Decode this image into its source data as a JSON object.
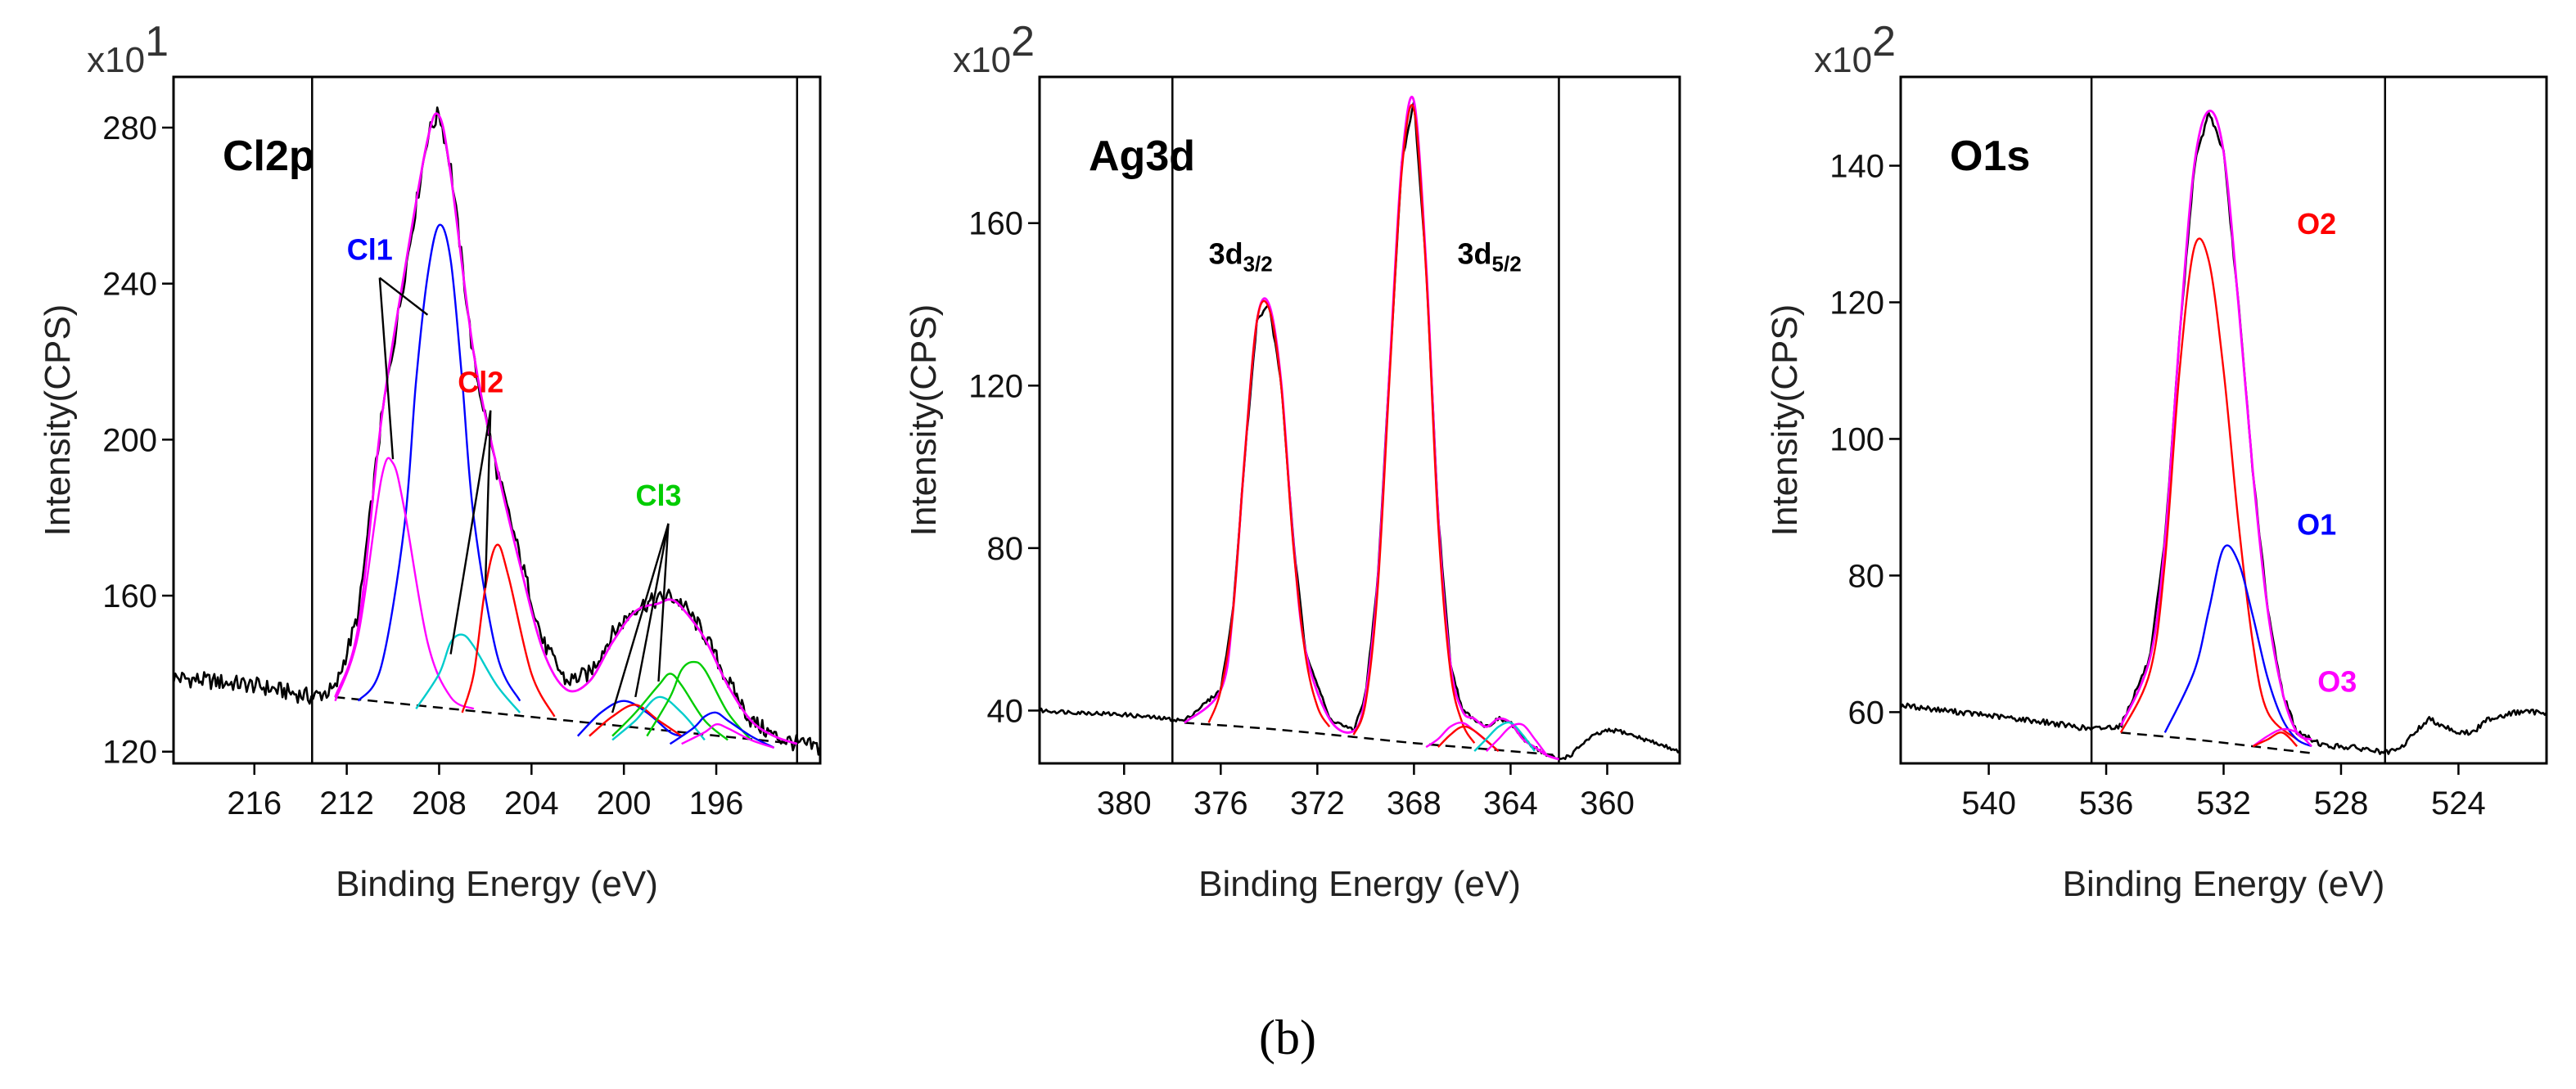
{
  "figure_caption": "(b)",
  "chart_data": [
    {
      "type": "line",
      "title": "Cl2p",
      "xlabel": "Binding Energy (eV)",
      "ylabel": "Intensity(CPS)",
      "y_multiplier": {
        "base": "x10",
        "exp": "1"
      },
      "xlim": [
        219.5,
        191.5
      ],
      "ylim": [
        117,
        293
      ],
      "xticks": [
        216,
        212,
        208,
        204,
        200,
        196
      ],
      "yticks": [
        120,
        160,
        200,
        240,
        280
      ],
      "vlines": [
        213.5,
        192.5
      ],
      "background": {
        "name": "background",
        "x": [
          212.5,
          192.5
        ],
        "y": [
          134,
          122
        ]
      },
      "raw_noise_amp": 2.2,
      "series": [
        {
          "name": "raw",
          "color": "#000000",
          "x": [
            219.5,
            216,
            213.5,
            212.5,
            211.5,
            210.5,
            209.5,
            208.5,
            208,
            207.5,
            206.5,
            205.5,
            204.5,
            203.5,
            202.5,
            201.5,
            200.5,
            199.5,
            198.5,
            198,
            197.5,
            196.5,
            195.5,
            194.5,
            193.5,
            192.5,
            191.5
          ],
          "y": [
            139,
            137,
            134,
            136,
            155,
            205,
            242,
            278,
            284,
            270,
            220,
            192,
            170,
            148,
            138,
            140,
            150,
            157,
            159,
            160,
            158,
            150,
            138,
            128,
            124,
            122,
            121
          ]
        },
        {
          "name": "envelope",
          "color": "#ff00ff",
          "x": [
            212.5,
            211.5,
            210.5,
            209.5,
            208.5,
            208,
            207.5,
            206.5,
            205.5,
            204.5,
            203.5,
            202.5,
            201.5,
            200.5,
            199.5,
            198.5,
            198,
            197.5,
            196.5,
            195.5,
            194.5,
            193.5,
            192.5
          ],
          "y": [
            134,
            152,
            205,
            243,
            277,
            283,
            268,
            222,
            193,
            168,
            146,
            136,
            138,
            148,
            156,
            158,
            159,
            157,
            149,
            137,
            128,
            124,
            122
          ]
        },
        {
          "name": "Cl1",
          "color": "#0000ff",
          "x": [
            211.5,
            210.5,
            209.5,
            209,
            208.5,
            208,
            207.5,
            207,
            206.5,
            205.5,
            204.5
          ],
          "y": [
            133,
            142,
            178,
            215,
            242,
            255,
            246,
            215,
            180,
            145,
            133
          ]
        },
        {
          "name": "Cl1",
          "color": "#ff00ff",
          "x": [
            212.5,
            211.5,
            210.5,
            210,
            209.5,
            208.5,
            207.5,
            206.5
          ],
          "y": [
            133,
            150,
            190,
            194,
            182,
            148,
            134,
            131
          ]
        },
        {
          "name": "Cl2",
          "color": "#00cccc",
          "x": [
            209,
            208,
            207.5,
            207,
            206.5,
            205.5,
            204.5
          ],
          "y": [
            131,
            140,
            148,
            150,
            147,
            137,
            130
          ]
        },
        {
          "name": "Cl2",
          "color": "#ff0000",
          "x": [
            207,
            206.5,
            206,
            205.5,
            205,
            204,
            203
          ],
          "y": [
            130,
            140,
            162,
            173,
            165,
            140,
            129
          ]
        },
        {
          "name": "Cl3",
          "color": "#0000ff",
          "x": [
            202,
            201,
            200,
            199,
            198,
            197.5
          ],
          "y": [
            124,
            130,
            133,
            130,
            125,
            124
          ]
        },
        {
          "name": "Cl3",
          "color": "#ff0000",
          "x": [
            201.5,
            200.5,
            199.5,
            198.5,
            197.5
          ],
          "y": [
            124,
            129,
            132,
            128,
            124
          ]
        },
        {
          "name": "Cl3",
          "color": "#00cc00",
          "x": [
            200.5,
            199.5,
            198.5,
            198,
            197.5,
            196.5,
            195.5
          ],
          "y": [
            124,
            130,
            137,
            140,
            137,
            128,
            123
          ]
        },
        {
          "name": "Cl3",
          "color": "#00cccc",
          "x": [
            200.5,
            199.5,
            198.5,
            197.5,
            196.5
          ],
          "y": [
            123,
            128,
            134,
            130,
            123
          ]
        },
        {
          "name": "Cl3",
          "color": "#00cc00",
          "x": [
            199,
            198,
            197.5,
            197,
            196.5,
            195.5,
            194.5
          ],
          "y": [
            124,
            134,
            141,
            143,
            141,
            130,
            123
          ]
        },
        {
          "name": "Cl3",
          "color": "#0000ff",
          "x": [
            198,
            197,
            196.5,
            196,
            195.5,
            194.5,
            193.5
          ],
          "y": [
            122,
            126,
            129,
            130,
            128,
            124,
            121
          ]
        },
        {
          "name": "Cl3",
          "color": "#ff00ff",
          "x": [
            197.5,
            196.5,
            196,
            195.5,
            194.5,
            193.5
          ],
          "y": [
            122,
            125,
            127,
            126,
            123,
            121
          ]
        }
      ],
      "annotations": [
        {
          "text": "Cl1",
          "color": "#0000ff",
          "x": 211,
          "y": 244,
          "pointers": [
            [
              210,
              195
            ],
            [
              208.5,
              232
            ]
          ]
        },
        {
          "text": "Cl2",
          "color": "#ff0000",
          "x": 206.2,
          "y": 210,
          "pointers": [
            [
              207.5,
              145
            ],
            [
              206,
              162
            ]
          ]
        },
        {
          "text": "Cl3",
          "color": "#00cc00",
          "x": 198.5,
          "y": 181,
          "pointers": [
            [
              200.5,
              130
            ],
            [
              199.5,
              134
            ],
            [
              198.5,
              138
            ]
          ]
        }
      ]
    },
    {
      "type": "line",
      "title": "Ag3d",
      "xlabel": "Binding Energy (eV)",
      "ylabel": "Intensity(CPS)",
      "y_multiplier": {
        "base": "x10",
        "exp": "2"
      },
      "xlim": [
        383.5,
        357
      ],
      "ylim": [
        27,
        196
      ],
      "xticks": [
        380,
        376,
        372,
        368,
        364,
        360
      ],
      "yticks": [
        40,
        80,
        120,
        160
      ],
      "vlines": [
        378,
        362
      ],
      "background": {
        "name": "background",
        "x": [
          377.5,
          374,
          370.5,
          368,
          365,
          362
        ],
        "y": [
          37,
          35.5,
          33.5,
          32,
          30.5,
          29
        ]
      },
      "raw_noise_amp": 0.5,
      "series": [
        {
          "name": "raw",
          "color": "#000000",
          "x": [
            383.5,
            380,
            377.5,
            376,
            375.5,
            375,
            374.5,
            374,
            373.5,
            373,
            372.5,
            371.5,
            370.5,
            370,
            369.5,
            369,
            368.5,
            368,
            367.5,
            367,
            366.5,
            366,
            365.5,
            365,
            364.5,
            364,
            363.5,
            363,
            362.5,
            362,
            361.5,
            361,
            360.5,
            360,
            359.5,
            359,
            358.5,
            358,
            357
          ],
          "y": [
            40,
            39,
            37.5,
            45,
            64,
            103,
            136,
            140,
            121,
            82,
            55,
            38,
            35,
            44,
            72,
            125,
            175,
            190,
            150,
            88,
            52,
            40,
            38,
            36,
            38,
            37,
            33,
            31,
            29,
            28,
            29,
            32,
            34,
            35,
            35,
            34,
            33,
            32,
            30
          ]
        },
        {
          "name": "envelope",
          "color": "#ff00ff",
          "x": [
            377.5,
            376,
            375.5,
            375,
            374.5,
            374,
            373.5,
            373,
            372.5,
            371.5,
            370.5,
            370,
            369.5,
            369,
            368.5,
            368,
            367.5,
            367,
            366.5,
            366,
            365.5,
            365,
            364.5,
            364,
            363.5,
            363,
            362.5,
            362
          ],
          "y": [
            37,
            45,
            64,
            103,
            136,
            140,
            121,
            82,
            55,
            38,
            35,
            44,
            72,
            125,
            175,
            190,
            150,
            88,
            52,
            40,
            38,
            36,
            38,
            37,
            33,
            31,
            29,
            28
          ]
        },
        {
          "name": "3d3/2",
          "color": "#ff0000",
          "x": [
            376.5,
            376,
            375.5,
            375,
            374.5,
            374,
            373.5,
            373,
            372.5,
            372,
            371.5
          ],
          "y": [
            37,
            45,
            64,
            103,
            136,
            139,
            120,
            81,
            54,
            41,
            36
          ]
        },
        {
          "name": "3d5/2",
          "color": "#ff0000",
          "x": [
            370.5,
            370,
            369.5,
            369,
            368.5,
            368,
            367.5,
            367,
            366.5,
            366,
            365.5
          ],
          "y": [
            34,
            42,
            70,
            123,
            173,
            188,
            148,
            86,
            50,
            37,
            32
          ]
        },
        {
          "name": "satellite",
          "color": "#ff00ff",
          "x": [
            367.5,
            367,
            366.5,
            366,
            365.5,
            364.5
          ],
          "y": [
            31,
            33,
            36,
            37,
            35,
            30
          ]
        },
        {
          "name": "satellite",
          "color": "#ff0000",
          "x": [
            367,
            366.5,
            366,
            365.5,
            364.5
          ],
          "y": [
            31,
            34,
            36,
            35,
            30
          ]
        },
        {
          "name": "satellite",
          "color": "#00cccc",
          "x": [
            365.5,
            365,
            364.5,
            364,
            363.5,
            363
          ],
          "y": [
            30,
            33,
            36,
            37,
            34,
            30
          ]
        },
        {
          "name": "satellite",
          "color": "#ff00ff",
          "x": [
            365,
            364.5,
            364,
            363.5,
            363,
            362.5
          ],
          "y": [
            30,
            33,
            36,
            36.5,
            33,
            29
          ]
        }
      ],
      "annotations": [
        {
          "text": "3d",
          "sub": "3/2",
          "color": "#000000",
          "x": 376.5,
          "y": 150
        },
        {
          "text": "3d",
          "sub": "5/2",
          "color": "#000000",
          "x": 366.2,
          "y": 150
        }
      ]
    },
    {
      "type": "line",
      "title": "O1s",
      "xlabel": "Binding Energy (eV)",
      "ylabel": "Intensity(CPS)",
      "y_multiplier": {
        "base": "x10",
        "exp": "2"
      },
      "xlim": [
        543,
        521
      ],
      "ylim": [
        52.5,
        153
      ],
      "xticks": [
        540,
        536,
        532,
        528,
        524
      ],
      "yticks": [
        60,
        80,
        100,
        120,
        140
      ],
      "vlines": [
        536.5,
        526.5
      ],
      "background": {
        "name": "background",
        "x": [
          535.5,
          533,
          531,
          529
        ],
        "y": [
          57,
          56,
          55,
          54
        ]
      },
      "raw_noise_amp": 0.4,
      "series": [
        {
          "name": "raw",
          "color": "#000000",
          "x": [
            543,
            540,
            538,
            536.5,
            535.5,
            534.5,
            534,
            533.5,
            533,
            532.5,
            532,
            531.5,
            531,
            530.5,
            530,
            529.5,
            529,
            528.5,
            528,
            527,
            526.5,
            526,
            525.5,
            525,
            524.5,
            524,
            523.5,
            523,
            522,
            521
          ],
          "y": [
            61,
            59.5,
            58.5,
            57.5,
            58,
            68,
            85,
            115,
            140,
            148,
            142,
            120,
            95,
            75,
            63,
            57,
            56,
            55,
            55,
            54.5,
            54,
            54.5,
            57,
            59,
            58,
            57,
            57,
            59,
            60,
            60
          ]
        },
        {
          "name": "envelope",
          "color": "#ff00ff",
          "x": [
            535.5,
            534.5,
            534,
            533.5,
            533,
            532.5,
            532,
            531.5,
            531,
            530.5,
            530,
            529.5,
            529
          ],
          "y": [
            58,
            68,
            85,
            115,
            140,
            148,
            142,
            120,
            95,
            75,
            63,
            57,
            56
          ]
        },
        {
          "name": "O2",
          "color": "#ff0000",
          "x": [
            535.5,
            534.5,
            534,
            533.5,
            533,
            532.5,
            532,
            531.5,
            531,
            530.5,
            529.5
          ],
          "y": [
            57,
            66,
            82,
            110,
            128,
            126,
            110,
            88,
            70,
            60,
            56
          ]
        },
        {
          "name": "O1",
          "color": "#0000ff",
          "x": [
            534,
            533,
            532.5,
            532,
            531.5,
            531,
            530.5,
            530,
            529.5,
            529
          ],
          "y": [
            57,
            66,
            75,
            84,
            82,
            74,
            65,
            59,
            56,
            55
          ]
        },
        {
          "name": "O3",
          "color": "#ff00ff",
          "x": [
            531,
            530.5,
            530,
            529.5,
            529
          ],
          "y": [
            55,
            56.5,
            57.5,
            57,
            55
          ]
        },
        {
          "name": "O3",
          "color": "#ff0000",
          "x": [
            531,
            530.5,
            530,
            529.5
          ],
          "y": [
            55,
            56,
            57,
            55
          ]
        }
      ],
      "annotations": [
        {
          "text": "O2",
          "color": "#ff0000",
          "x": 529.5,
          "y": 130
        },
        {
          "text": "O1",
          "color": "#0000ff",
          "x": 529.5,
          "y": 86
        },
        {
          "text": "O3",
          "color": "#ff00ff",
          "x": 528.8,
          "y": 63
        }
      ]
    }
  ]
}
